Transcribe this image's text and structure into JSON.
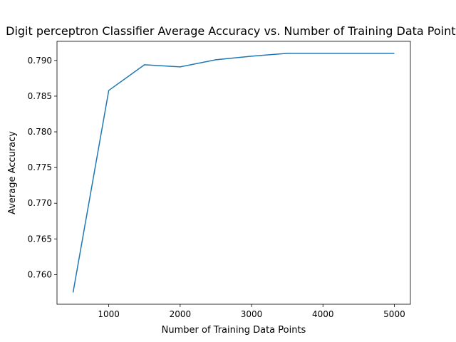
{
  "chart_data": {
    "type": "line",
    "title": "Digit perceptron Classifier   Average Accuracy vs. Number of Training Data Points",
    "xlabel": "Number of Training Data Points",
    "ylabel": "Average Accuracy",
    "xlim": [
      275,
      5225
    ],
    "ylim": [
      0.75585,
      0.79268
    ],
    "xticks": [
      1000,
      2000,
      3000,
      4000,
      5000
    ],
    "xtick_labels": [
      "1000",
      "2000",
      "3000",
      "4000",
      "5000"
    ],
    "yticks": [
      0.76,
      0.765,
      0.77,
      0.775,
      0.78,
      0.785,
      0.79
    ],
    "ytick_labels": [
      "0.760",
      "0.765",
      "0.770",
      "0.775",
      "0.780",
      "0.785",
      "0.790"
    ],
    "grid": false,
    "series": [
      {
        "color": "#1f77b4",
        "x": [
          500,
          1000,
          1500,
          2000,
          2500,
          3000,
          3500,
          4000,
          4500,
          5000
        ],
        "y": [
          0.7575,
          0.7858,
          0.7894,
          0.7891,
          0.7901,
          0.7906,
          0.791,
          0.791,
          0.791,
          0.791
        ]
      }
    ]
  }
}
